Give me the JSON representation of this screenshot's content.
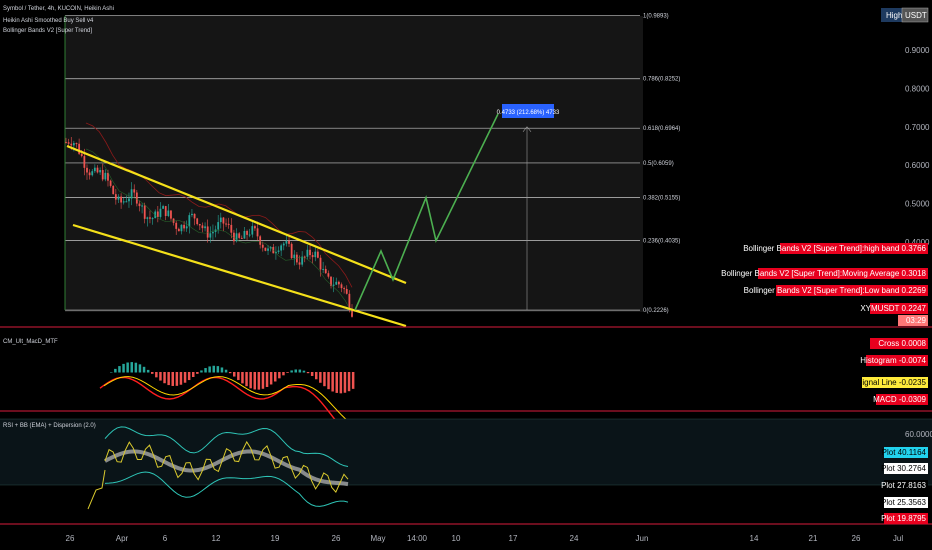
{
  "header": {
    "title": "Symbol / Tether, 4h, KUCOIN, Heikin Ashi",
    "indicators": [
      "Heikin Ashi Smoothed Buy Sell v4",
      "Bollinger Bands V2 [Super Trend]"
    ],
    "badge_high": "High",
    "badge_usdt": "USDT"
  },
  "colors": {
    "background": "#000000",
    "bull": "#26a69a",
    "bear": "#ef5350",
    "channel": "#f5e11a",
    "projection": "#4caf50",
    "fib": "#c8c8c8",
    "red_label": "#e8001e",
    "yellow_label": "#ffeb3b",
    "cyan_label": "#22d3ee",
    "bb_band": "#2ec4b6",
    "rsi_line": "#d9c92e"
  },
  "projection_label": "0.4733 (212.68%) 4733",
  "chart_data": [
    {
      "type": "candlestick",
      "x_axis_labels": [
        "26",
        "Apr",
        "6",
        "12",
        "19",
        "26",
        "May",
        "14:00",
        "10",
        "17",
        "24",
        "Jun",
        "14",
        "21",
        "26",
        "Jul"
      ],
      "y_axis_labels": [
        "0.9000",
        "0.8000",
        "0.7000",
        "0.6000",
        "0.5000",
        "0.4000"
      ],
      "price_overlays": {
        "ohlc": {
          "open": 0.66,
          "high": 0.69,
          "low": 0.25,
          "close": 0.2247
        },
        "candle_closes": [
          0.66,
          0.62,
          0.56,
          0.52,
          0.5,
          0.47,
          0.46,
          0.45,
          0.44,
          0.43,
          0.42,
          0.4,
          0.38,
          0.37,
          0.35,
          0.3,
          0.2247
        ]
      },
      "fib_levels": [
        {
          "label": "1(0.9893)",
          "value": 0.9893
        },
        {
          "label": "0.786(0.8252)",
          "value": 0.8252
        },
        {
          "label": "0.618(0.6964)",
          "value": 0.6964
        },
        {
          "label": "0.5(0.6059)",
          "value": 0.6059
        },
        {
          "label": "0.382(0.5155)",
          "value": 0.5155
        },
        {
          "label": "0.236(0.4035)",
          "value": 0.4035
        },
        {
          "label": "0(0.2226)",
          "value": 0.2226
        }
      ],
      "price_labels": [
        {
          "name": "Bollinger Bands V2 [Super Trend]:high band",
          "value": "0.3766"
        },
        {
          "name": "Bollinger Bands V2 [Super Trend]:Moving Average",
          "value": "0.3018"
        },
        {
          "name": "Bollinger Bands V2 [Super Trend]:Low band",
          "value": "0.2269"
        },
        {
          "name": "XYMUSDT",
          "value": "0.2247"
        },
        {
          "name": "",
          "value": "03:29"
        }
      ],
      "projection_path": [
        0.2226,
        0.3766,
        0.3018,
        0.5155,
        0.4035,
        0.7333
      ]
    },
    {
      "type": "macd",
      "title": "CM_Ult_MacD_MTF",
      "labels": [
        {
          "name": "Cross",
          "value": "0.0008"
        },
        {
          "name": "Histogram",
          "value": "-0.0074"
        },
        {
          "name": "Signal Line",
          "value": "-0.0235"
        },
        {
          "name": "MACD",
          "value": "-0.0309"
        }
      ]
    },
    {
      "type": "rsi",
      "title": "RSI + BB (EMA) + Dispersion (2.0)",
      "y_axis_labels": [
        "60.0000"
      ],
      "labels": [
        {
          "name": "Plot",
          "value": "40.1164"
        },
        {
          "name": "Plot",
          "value": "30.2764"
        },
        {
          "name": "Plot",
          "value": "27.8163"
        },
        {
          "name": "Plot",
          "value": "25.3563"
        },
        {
          "name": "Plot",
          "value": "19.8795"
        }
      ]
    }
  ]
}
